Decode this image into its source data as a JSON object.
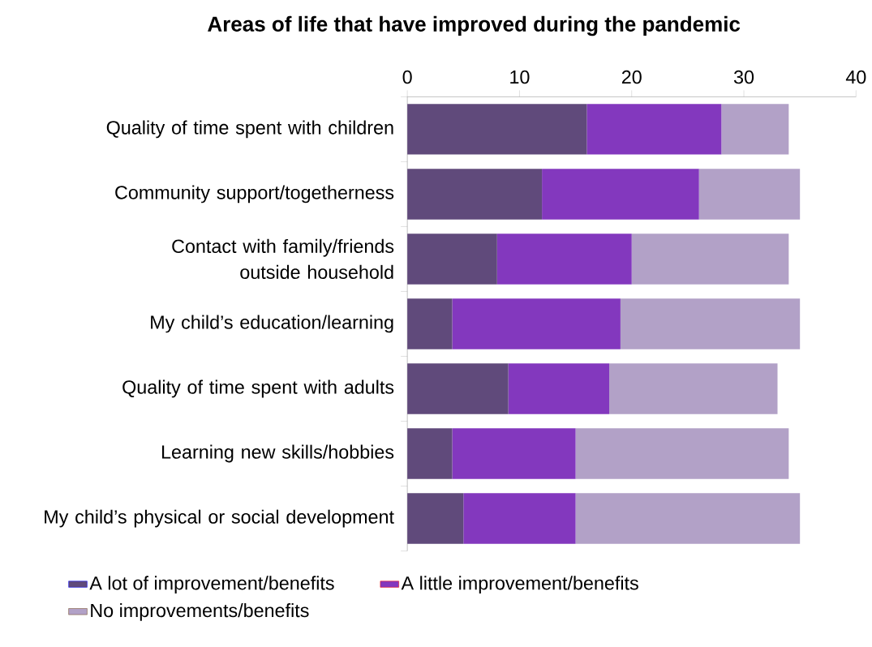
{
  "chart_data": {
    "type": "bar",
    "orientation": "horizontal",
    "stacked": true,
    "title": "Areas of life that have improved during the pandemic",
    "categories": [
      "Quality of time spent with children",
      "Community support/togetherness",
      "Contact with family/friends outside household",
      "My child’s education/learning",
      "Quality of time spent with adults",
      "Learning new skills/hobbies",
      "My child’s physical or social development"
    ],
    "series": [
      {
        "name": "A lot of improvement/benefits",
        "color": "#604a7b",
        "values": [
          16,
          12,
          8,
          4,
          9,
          4,
          5
        ]
      },
      {
        "name": "A little improvement/benefits",
        "color": "#8338be",
        "values": [
          12,
          14,
          12,
          15,
          9,
          11,
          10
        ]
      },
      {
        "name": "No improvements/benefits",
        "color": "#b2a1c7",
        "values": [
          6,
          9,
          14,
          16,
          15,
          19,
          20
        ]
      }
    ],
    "xlim": [
      0,
      40
    ],
    "xticks": [
      0,
      10,
      20,
      30,
      40
    ],
    "legend": "bottom"
  }
}
